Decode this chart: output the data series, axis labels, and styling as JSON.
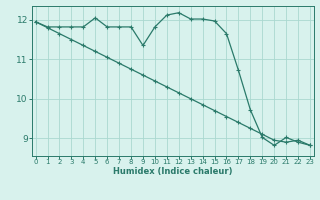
{
  "xlabel": "Humidex (Indice chaleur)",
  "line1_x": [
    0,
    1,
    2,
    3,
    4,
    5,
    6,
    7,
    8,
    9,
    10,
    11,
    12,
    13,
    14,
    15,
    16,
    17,
    18,
    19,
    20,
    21,
    22,
    23
  ],
  "line1_y": [
    11.95,
    11.82,
    11.82,
    11.82,
    11.82,
    12.05,
    11.82,
    11.82,
    11.82,
    11.35,
    11.82,
    12.12,
    12.18,
    12.02,
    12.02,
    11.97,
    11.65,
    10.72,
    9.72,
    9.02,
    8.82,
    9.02,
    8.9,
    8.82
  ],
  "line2_x": [
    0,
    1,
    2,
    3,
    4,
    5,
    6,
    7,
    8,
    9,
    10,
    11,
    12,
    13,
    14,
    15,
    16,
    17,
    18,
    19,
    20,
    21,
    22,
    23
  ],
  "line2_y": [
    11.95,
    11.8,
    11.65,
    11.5,
    11.35,
    11.2,
    11.05,
    10.9,
    10.75,
    10.6,
    10.45,
    10.3,
    10.15,
    10.0,
    9.85,
    9.7,
    9.55,
    9.4,
    9.25,
    9.1,
    8.95,
    8.9,
    8.95,
    8.82
  ],
  "line_color": "#2a7a6a",
  "bg_color": "#d8f2ed",
  "grid_color": "#aad8d0",
  "axis_color": "#2a7a6a",
  "xlim": [
    -0.3,
    23.3
  ],
  "ylim": [
    8.55,
    12.35
  ],
  "yticks": [
    9,
    10,
    11,
    12
  ],
  "xticks": [
    0,
    1,
    2,
    3,
    4,
    5,
    6,
    7,
    8,
    9,
    10,
    11,
    12,
    13,
    14,
    15,
    16,
    17,
    18,
    19,
    20,
    21,
    22,
    23
  ]
}
